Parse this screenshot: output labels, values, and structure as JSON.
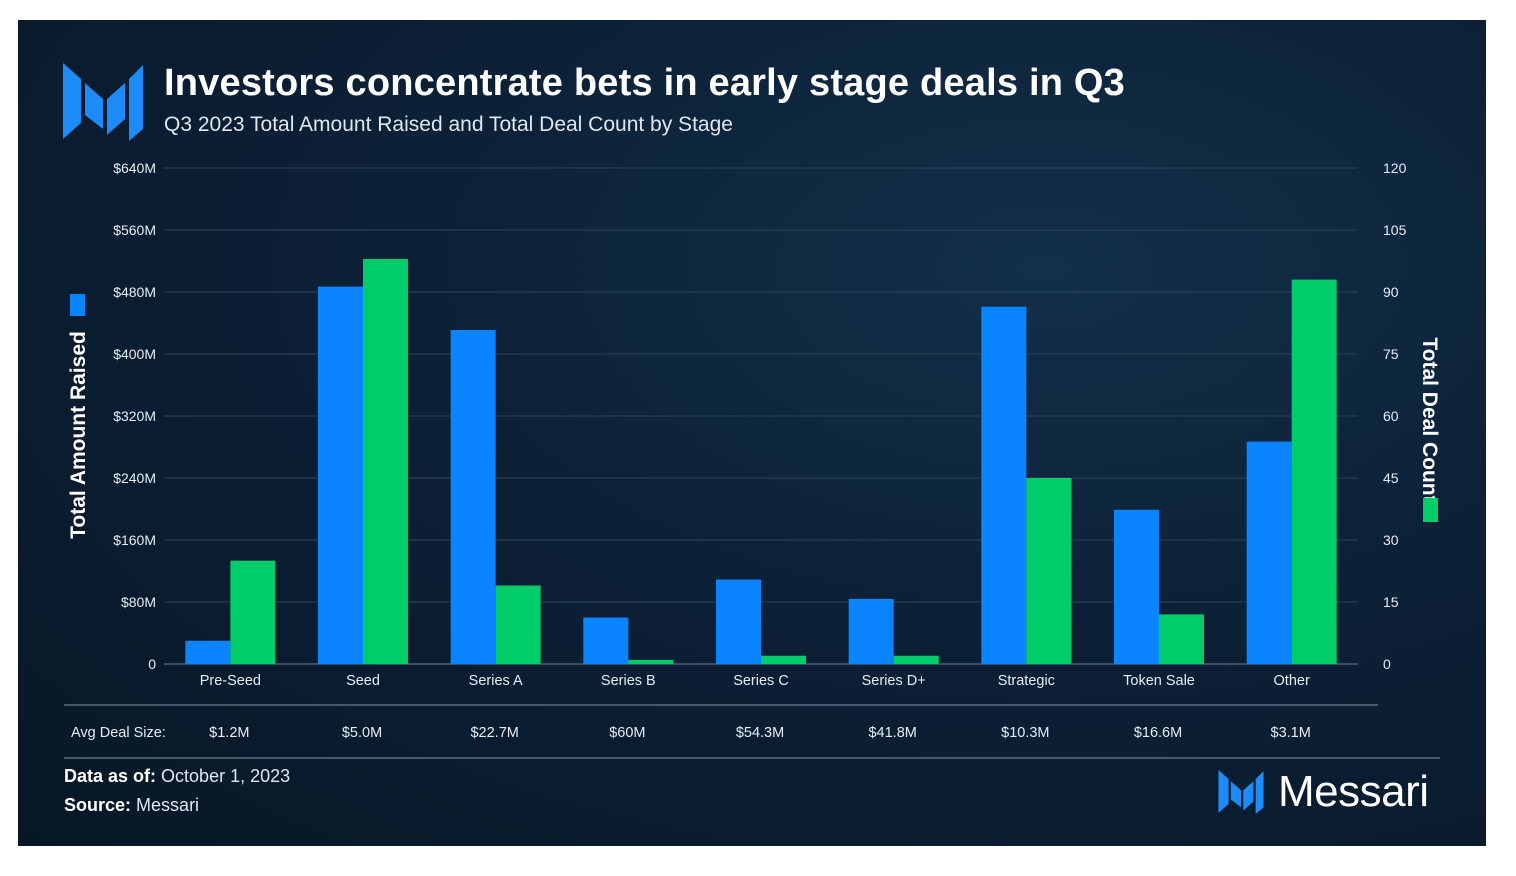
{
  "header": {
    "title": "Investors concentrate bets in early stage deals in Q3",
    "subtitle": "Q3 2023 Total Amount Raised and Total Deal Count by Stage"
  },
  "colors": {
    "background": "#0c2036",
    "amount_series": "#0a84ff",
    "count_series": "#00cc6a",
    "text": "#ffffff"
  },
  "icons": {
    "logo": "messari-logo-icon"
  },
  "chart_data": {
    "type": "bar",
    "categories": [
      "Pre-Seed",
      "Seed",
      "Series A",
      "Series B",
      "Series C",
      "Series D+",
      "Strategic",
      "Token Sale",
      "Other"
    ],
    "series": [
      {
        "name": "",
        "axis": "left",
        "values": [
          30,
          487,
          431,
          60,
          109,
          84,
          461,
          199,
          287
        ]
      },
      {
        "name": "",
        "axis": "right",
        "values": [
          25,
          98,
          19,
          1,
          2,
          2,
          45,
          12,
          93
        ]
      }
    ],
    "ylabel": "Total Amount Raised",
    "y2label": "Total Deal Count",
    "ylim": [
      0,
      640
    ],
    "y2lim": [
      0,
      120
    ],
    "yticks": [
      "0",
      "$80M",
      "$160M",
      "$240M",
      "$320M",
      "$400M",
      "$480M",
      "$560M",
      "$640M"
    ],
    "y2ticks": [
      "0",
      "15",
      "30",
      "45",
      "60",
      "75",
      "90",
      "105",
      "120"
    ],
    "grid": true,
    "legend": "none (color swatches beside axis titles)",
    "table": {
      "label": "Avg Deal Size:",
      "values": [
        "$1.2M",
        "$5.0M",
        "$22.7M",
        "$60M",
        "$54.3M",
        "$41.8M",
        "$10.3M",
        "$16.6M",
        "$3.1M"
      ]
    }
  },
  "footer": {
    "date_label": "Data as of:",
    "date_value": "October 1, 2023",
    "source_label": "Source:",
    "source_value": "Messari",
    "brand": "Messari"
  }
}
